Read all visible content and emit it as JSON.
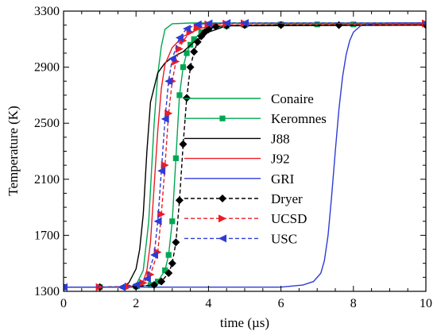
{
  "chart_data": {
    "type": "line",
    "xlabel": "time (µs)",
    "ylabel": "Temperature (K)",
    "xlim": [
      0,
      10
    ],
    "ylim": [
      1300,
      3300
    ],
    "xticks": [
      0,
      2,
      4,
      6,
      8,
      10
    ],
    "yticks": [
      1300,
      1700,
      2100,
      2500,
      2900,
      3300
    ],
    "grid": false,
    "legend_position": "center",
    "series": [
      {
        "name": "Conaire",
        "color": "#00a651",
        "dash": "solid",
        "marker": "none",
        "x": [
          0,
          1.8,
          2.0,
          2.2,
          2.35,
          2.5,
          2.6,
          2.7,
          2.8,
          3.0,
          3.5,
          10
        ],
        "y": [
          1330,
          1330,
          1345,
          1450,
          1800,
          2500,
          2850,
          3050,
          3170,
          3210,
          3215,
          3215
        ]
      },
      {
        "name": "Keromnes",
        "color": "#00a651",
        "dash": "solid",
        "marker": "square",
        "x": [
          0,
          1.0,
          2.0,
          2.4,
          2.6,
          2.8,
          2.9,
          3.0,
          3.1,
          3.2,
          3.3,
          3.4,
          3.5,
          3.6,
          3.8,
          4.0,
          4.5,
          5.0,
          6.0,
          7.0,
          8.0,
          10
        ],
        "y": [
          1330,
          1330,
          1335,
          1345,
          1370,
          1450,
          1560,
          1800,
          2250,
          2700,
          2900,
          3000,
          3060,
          3100,
          3150,
          3175,
          3195,
          3200,
          3205,
          3205,
          3205,
          3205
        ]
      },
      {
        "name": "J88",
        "color": "#000000",
        "dash": "solid",
        "marker": "none",
        "x": [
          0,
          1.6,
          1.8,
          2.0,
          2.1,
          2.2,
          2.3,
          2.4,
          2.6,
          2.8,
          3.0,
          3.3,
          3.6,
          4.0,
          4.5,
          10
        ],
        "y": [
          1330,
          1330,
          1360,
          1460,
          1600,
          1850,
          2300,
          2650,
          2860,
          2930,
          2970,
          3010,
          3080,
          3150,
          3195,
          3200
        ]
      },
      {
        "name": "J92",
        "color": "#ed1c24",
        "dash": "solid",
        "marker": "none",
        "x": [
          0,
          2.0,
          2.2,
          2.3,
          2.4,
          2.5,
          2.6,
          2.7,
          2.8,
          3.0,
          3.3,
          3.8,
          4.5,
          10
        ],
        "y": [
          1330,
          1330,
          1370,
          1450,
          1650,
          2050,
          2450,
          2750,
          2920,
          3040,
          3120,
          3180,
          3200,
          3205
        ]
      },
      {
        "name": "GRI",
        "color": "#2e3bd6",
        "dash": "solid",
        "marker": "none",
        "x": [
          0,
          6.0,
          6.6,
          6.9,
          7.1,
          7.2,
          7.3,
          7.4,
          7.5,
          7.6,
          7.7,
          7.8,
          7.9,
          8.0,
          8.2,
          8.5,
          9.0,
          10
        ],
        "y": [
          1330,
          1330,
          1345,
          1370,
          1430,
          1520,
          1700,
          1980,
          2300,
          2600,
          2830,
          2990,
          3090,
          3150,
          3195,
          3210,
          3215,
          3215
        ]
      },
      {
        "name": "Dryer",
        "color": "#000000",
        "dash": "dashed",
        "marker": "diamond",
        "x": [
          0,
          1.0,
          2.0,
          2.5,
          2.7,
          2.9,
          3.0,
          3.1,
          3.2,
          3.3,
          3.4,
          3.5,
          3.6,
          3.7,
          3.8,
          3.9,
          4.0,
          4.2,
          4.5,
          5.0,
          6.0,
          7.6,
          10
        ],
        "y": [
          1330,
          1330,
          1335,
          1345,
          1370,
          1430,
          1500,
          1650,
          1950,
          2350,
          2680,
          2900,
          3010,
          3080,
          3120,
          3150,
          3170,
          3190,
          3195,
          3200,
          3200,
          3200,
          3200
        ]
      },
      {
        "name": "UCSD",
        "color": "#ed1c24",
        "dash": "dashed",
        "marker": "triangle-right",
        "x": [
          0,
          1.0,
          1.8,
          2.2,
          2.4,
          2.6,
          2.7,
          2.8,
          2.9,
          3.0,
          3.1,
          3.2,
          3.3,
          3.5,
          3.7,
          4.0,
          4.5,
          5.0,
          10
        ],
        "y": [
          1330,
          1330,
          1335,
          1360,
          1420,
          1580,
          1850,
          2200,
          2570,
          2800,
          2940,
          3030,
          3090,
          3150,
          3185,
          3205,
          3210,
          3212,
          3212
        ]
      },
      {
        "name": "USC",
        "color": "#2e3bd6",
        "dash": "dashed",
        "marker": "triangle-left",
        "x": [
          0,
          1.6,
          2.0,
          2.3,
          2.5,
          2.6,
          2.7,
          2.8,
          2.9,
          3.0,
          3.2,
          3.4,
          3.7,
          4.0,
          4.5,
          5.0,
          10
        ],
        "y": [
          1330,
          1330,
          1345,
          1390,
          1560,
          1800,
          2160,
          2530,
          2800,
          2960,
          3110,
          3175,
          3205,
          3212,
          3215,
          3215,
          3215
        ]
      }
    ]
  }
}
